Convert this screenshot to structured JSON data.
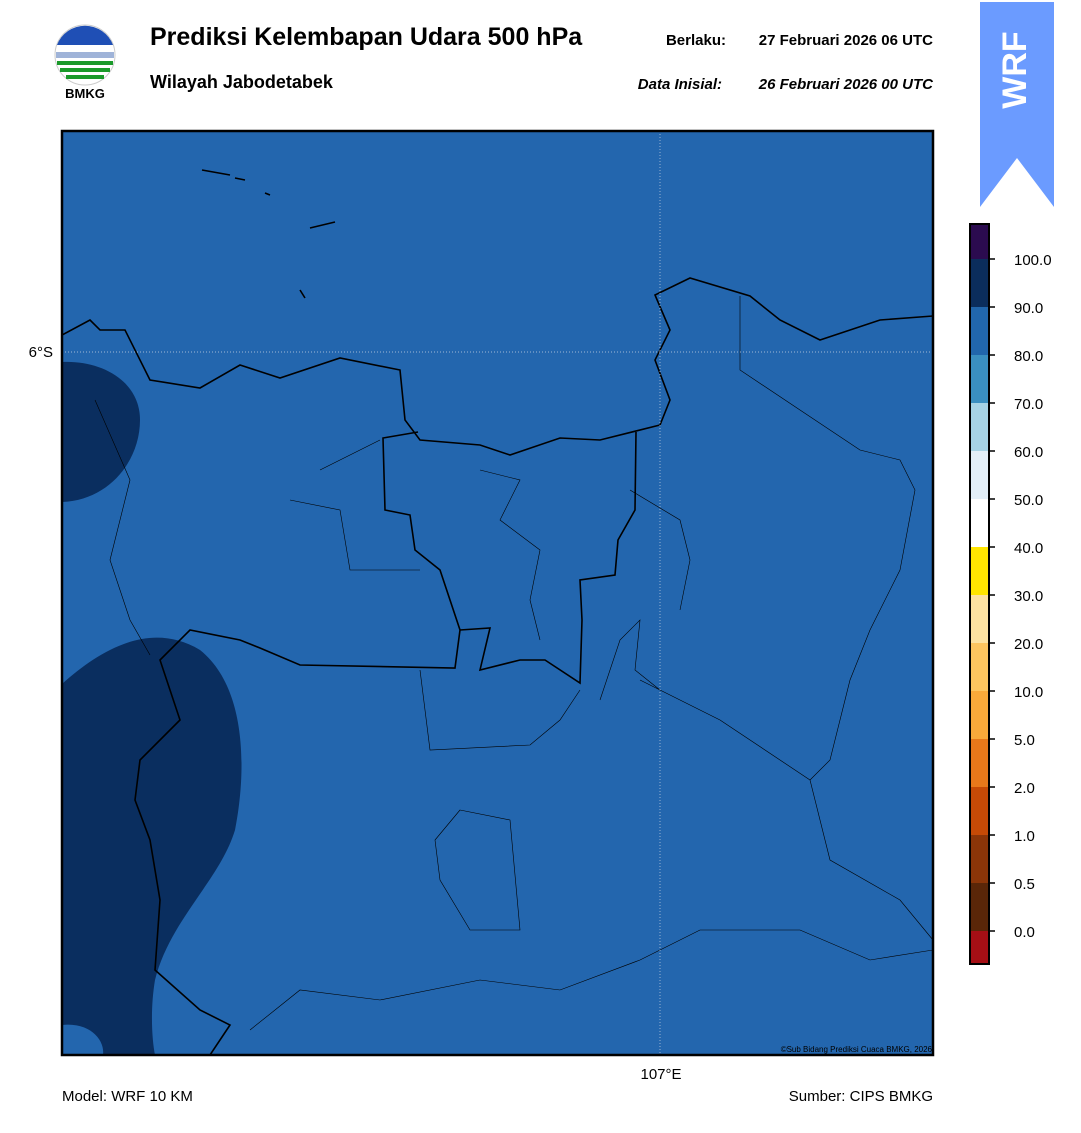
{
  "header": {
    "title": "Prediksi Kelembapan Udara 500 hPa",
    "subtitle": "Wilayah Jabodetabek",
    "valid_label": "Berlaku:",
    "valid_time": "27 Februari 2026 06 UTC",
    "init_label": "Data Inisial:",
    "init_time": "26 Februari 2026 00 UTC",
    "logo_text": "BMKG",
    "badge": "WRF"
  },
  "map": {
    "lat_label": "6°S",
    "lon_label": "107°E",
    "credit": "©Sub Bidang Prediksi Cuaca BMKG, 2026"
  },
  "colorbar": {
    "labels": [
      "100.0",
      "90.0",
      "80.0",
      "70.0",
      "60.0",
      "50.0",
      "40.0",
      "30.0",
      "20.0",
      "10.0",
      "5.0",
      "2.0",
      "1.0",
      "0.5",
      "0.0"
    ],
    "colors": [
      "#2b0b4f",
      "#0b2d5c",
      "#2166ac",
      "#3a8fc0",
      "#a6d3e5",
      "#e3eff8",
      "#ffffff",
      "#ffe500",
      "#fde2a0",
      "#fdc55f",
      "#f9a93a",
      "#e8781a",
      "#c64a06",
      "#8b3508",
      "#5a2608",
      "#a50f15",
      "#e8392e"
    ]
  },
  "footer": {
    "model": "Model: WRF 10 KM",
    "source": "Sumber: CIPS BMKG"
  }
}
